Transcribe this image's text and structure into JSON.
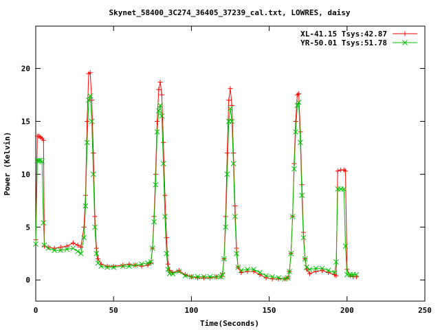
{
  "chart_data": {
    "type": "line",
    "title": "Skynet_58400_3C274_36405_37239_cal.txt, LOWRES, daisy",
    "xlabel": "Time(Seconds)",
    "ylabel": "Power (Kelvin)",
    "xlim": [
      0,
      250
    ],
    "ylim": [
      -2,
      24
    ],
    "x_ticks": [
      0,
      50,
      100,
      150,
      200,
      250
    ],
    "y_ticks": [
      0,
      5,
      10,
      15,
      20
    ],
    "grid": false,
    "legend_position": "top-right",
    "series": [
      {
        "name": "XL-41.15 Tsys:42.87",
        "color": "#ff0000",
        "marker": "plus",
        "points": [
          [
            0,
            3.8
          ],
          [
            1,
            13.6
          ],
          [
            2,
            13.6
          ],
          [
            3,
            13.5
          ],
          [
            4,
            13.4
          ],
          [
            5,
            13.2
          ],
          [
            5.5,
            3.2
          ],
          [
            8,
            3.1
          ],
          [
            12,
            3.0
          ],
          [
            16,
            3.1
          ],
          [
            20,
            3.2
          ],
          [
            24,
            3.5
          ],
          [
            27,
            3.3
          ],
          [
            29,
            3.1
          ],
          [
            31,
            5.0
          ],
          [
            32,
            8.0
          ],
          [
            33,
            15.0
          ],
          [
            34,
            19.5
          ],
          [
            35,
            19.6
          ],
          [
            36,
            17.0
          ],
          [
            37,
            12.0
          ],
          [
            38,
            6.0
          ],
          [
            39,
            3.0
          ],
          [
            40,
            2.0
          ],
          [
            42,
            1.5
          ],
          [
            46,
            1.3
          ],
          [
            50,
            1.3
          ],
          [
            56,
            1.4
          ],
          [
            60,
            1.5
          ],
          [
            64,
            1.4
          ],
          [
            68,
            1.3
          ],
          [
            72,
            1.4
          ],
          [
            74,
            1.6
          ],
          [
            75,
            3.0
          ],
          [
            76,
            6.0
          ],
          [
            77,
            10.0
          ],
          [
            78,
            15.0
          ],
          [
            79,
            18.0
          ],
          [
            80,
            18.7
          ],
          [
            81,
            17.5
          ],
          [
            82,
            13.0
          ],
          [
            83,
            8.0
          ],
          [
            84,
            4.0
          ],
          [
            85,
            1.5
          ],
          [
            86,
            0.9
          ],
          [
            88,
            0.7
          ],
          [
            92,
            0.9
          ],
          [
            96,
            0.5
          ],
          [
            100,
            0.3
          ],
          [
            104,
            0.2
          ],
          [
            108,
            0.2
          ],
          [
            112,
            0.2
          ],
          [
            116,
            0.3
          ],
          [
            119,
            0.3
          ],
          [
            120,
            0.6
          ],
          [
            121,
            2.0
          ],
          [
            122,
            6.0
          ],
          [
            123,
            12.0
          ],
          [
            124,
            17.0
          ],
          [
            125,
            18.1
          ],
          [
            126,
            16.5
          ],
          [
            127,
            12.0
          ],
          [
            128,
            7.0
          ],
          [
            129,
            3.0
          ],
          [
            130,
            1.2
          ],
          [
            132,
            0.7
          ],
          [
            136,
            0.8
          ],
          [
            140,
            0.8
          ],
          [
            144,
            0.5
          ],
          [
            148,
            0.2
          ],
          [
            152,
            0.1
          ],
          [
            156,
            0.1
          ],
          [
            160,
            0.1
          ],
          [
            162,
            0.2
          ],
          [
            163,
            0.8
          ],
          [
            164,
            2.5
          ],
          [
            165,
            6.0
          ],
          [
            166,
            11.0
          ],
          [
            167,
            15.0
          ],
          [
            168,
            17.5
          ],
          [
            169,
            17.6
          ],
          [
            170,
            14.0
          ],
          [
            171,
            9.0
          ],
          [
            172,
            4.5
          ],
          [
            173,
            2.0
          ],
          [
            174,
            1.0
          ],
          [
            176,
            0.6
          ],
          [
            180,
            0.8
          ],
          [
            184,
            0.9
          ],
          [
            188,
            0.7
          ],
          [
            192,
            0.5
          ],
          [
            193,
            0.4
          ],
          [
            194,
            10.3
          ],
          [
            196,
            10.4
          ],
          [
            198,
            10.4
          ],
          [
            199,
            10.3
          ],
          [
            200,
            1.0
          ],
          [
            202,
            0.4
          ],
          [
            204,
            0.3
          ],
          [
            206,
            0.3
          ]
        ]
      },
      {
        "name": "YR-50.01 Tsys:51.78",
        "color": "#00c000",
        "marker": "cross",
        "points": [
          [
            0,
            3.4
          ],
          [
            1,
            11.3
          ],
          [
            2,
            11.3
          ],
          [
            3,
            11.3
          ],
          [
            4,
            11.2
          ],
          [
            5,
            5.4
          ],
          [
            5.5,
            3.3
          ],
          [
            8,
            3.0
          ],
          [
            12,
            2.8
          ],
          [
            16,
            2.8
          ],
          [
            20,
            2.9
          ],
          [
            24,
            3.0
          ],
          [
            27,
            2.7
          ],
          [
            29,
            2.5
          ],
          [
            31,
            4.0
          ],
          [
            32,
            7.0
          ],
          [
            33,
            13.0
          ],
          [
            34,
            17.0
          ],
          [
            35,
            17.4
          ],
          [
            36,
            15.0
          ],
          [
            37,
            10.0
          ],
          [
            38,
            5.0
          ],
          [
            39,
            2.5
          ],
          [
            40,
            1.6
          ],
          [
            42,
            1.3
          ],
          [
            46,
            1.2
          ],
          [
            50,
            1.2
          ],
          [
            56,
            1.3
          ],
          [
            60,
            1.3
          ],
          [
            64,
            1.4
          ],
          [
            68,
            1.5
          ],
          [
            72,
            1.6
          ],
          [
            74,
            1.7
          ],
          [
            75,
            3.0
          ],
          [
            76,
            5.5
          ],
          [
            77,
            9.0
          ],
          [
            78,
            14.0
          ],
          [
            79,
            16.0
          ],
          [
            80,
            16.5
          ],
          [
            81,
            15.5
          ],
          [
            82,
            11.0
          ],
          [
            83,
            6.0
          ],
          [
            84,
            2.5
          ],
          [
            85,
            1.0
          ],
          [
            86,
            0.6
          ],
          [
            88,
            0.6
          ],
          [
            92,
            0.8
          ],
          [
            96,
            0.4
          ],
          [
            100,
            0.3
          ],
          [
            104,
            0.3
          ],
          [
            108,
            0.3
          ],
          [
            112,
            0.3
          ],
          [
            116,
            0.3
          ],
          [
            119,
            0.3
          ],
          [
            120,
            0.5
          ],
          [
            121,
            2.0
          ],
          [
            122,
            5.0
          ],
          [
            123,
            10.0
          ],
          [
            124,
            15.0
          ],
          [
            125,
            16.2
          ],
          [
            126,
            15.0
          ],
          [
            127,
            11.0
          ],
          [
            128,
            6.0
          ],
          [
            129,
            2.5
          ],
          [
            130,
            1.2
          ],
          [
            132,
            0.9
          ],
          [
            136,
            1.0
          ],
          [
            140,
            1.0
          ],
          [
            144,
            0.7
          ],
          [
            148,
            0.4
          ],
          [
            152,
            0.3
          ],
          [
            156,
            0.2
          ],
          [
            160,
            0.1
          ],
          [
            162,
            0.2
          ],
          [
            163,
            0.8
          ],
          [
            164,
            2.5
          ],
          [
            165,
            6.0
          ],
          [
            166,
            10.5
          ],
          [
            167,
            14.0
          ],
          [
            168,
            16.5
          ],
          [
            169,
            16.8
          ],
          [
            170,
            13.0
          ],
          [
            171,
            8.0
          ],
          [
            172,
            4.0
          ],
          [
            173,
            2.0
          ],
          [
            174,
            1.2
          ],
          [
            176,
            1.0
          ],
          [
            180,
            1.1
          ],
          [
            184,
            1.1
          ],
          [
            188,
            0.9
          ],
          [
            192,
            0.7
          ],
          [
            193,
            1.7
          ],
          [
            194,
            8.6
          ],
          [
            196,
            8.6
          ],
          [
            198,
            8.6
          ],
          [
            199,
            3.2
          ],
          [
            200,
            0.5
          ],
          [
            202,
            0.5
          ],
          [
            204,
            0.5
          ],
          [
            206,
            0.5
          ]
        ]
      }
    ]
  }
}
